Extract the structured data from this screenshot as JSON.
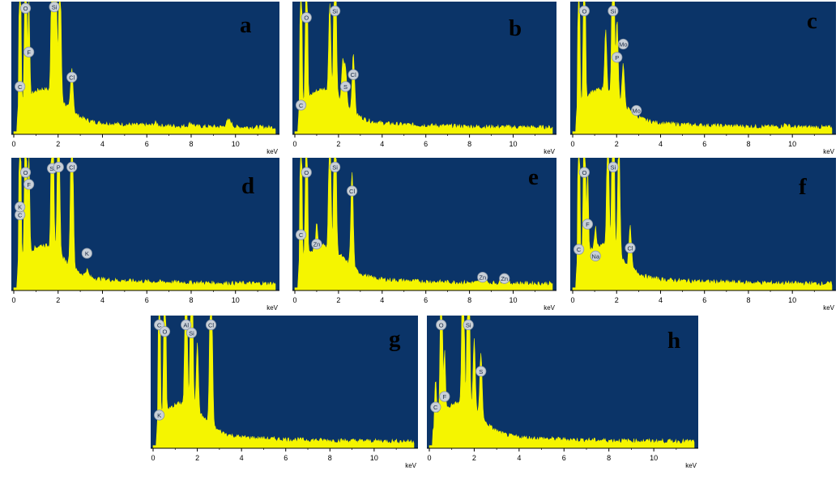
{
  "colors": {
    "background": "#0b3468",
    "spectrum": "#f5f500",
    "marker_fill": "#c9d0d8",
    "marker_text": "#1a2a44",
    "axis_text": "#000000"
  },
  "axis": {
    "unit": "keV",
    "ticks": [
      0,
      2,
      4,
      6,
      8,
      10
    ],
    "xlim": [
      0,
      11.8
    ]
  },
  "chart_data": [
    {
      "type": "area",
      "label": "a",
      "xlabel": "keV",
      "peaks": [
        {
          "x": 0.28,
          "h": 1.9
        },
        {
          "x": 0.53,
          "h": 2.6
        },
        {
          "x": 0.68,
          "h": 0.75
        },
        {
          "x": 1.74,
          "h": 1.6
        },
        {
          "x": 1.88,
          "h": 1.8
        },
        {
          "x": 2.08,
          "h": 1.1
        },
        {
          "x": 2.62,
          "h": 0.32
        },
        {
          "x": 9.7,
          "h": 0.05
        },
        {
          "x": 8.0,
          "h": 0.025
        },
        {
          "x": 6.4,
          "h": 0.02
        }
      ],
      "markers": [
        {
          "label": "C",
          "x": 0.28,
          "h": 0.36
        },
        {
          "label": "O",
          "x": 0.53,
          "h": 0.95
        },
        {
          "label": "F",
          "x": 0.68,
          "h": 0.62
        },
        {
          "label": "Si",
          "x": 1.83,
          "h": 0.96
        },
        {
          "label": "Cl",
          "x": 2.62,
          "h": 0.43
        }
      ]
    },
    {
      "type": "area",
      "label": "b",
      "xlabel": "keV",
      "peaks": [
        {
          "x": 0.28,
          "h": 1.8
        },
        {
          "x": 0.53,
          "h": 2.4
        },
        {
          "x": 1.6,
          "h": 0.68
        },
        {
          "x": 1.84,
          "h": 1.7
        },
        {
          "x": 2.2,
          "h": 0.3
        },
        {
          "x": 2.32,
          "h": 0.28
        },
        {
          "x": 2.68,
          "h": 0.45
        }
      ],
      "markers": [
        {
          "label": "C",
          "x": 0.28,
          "h": 0.22
        },
        {
          "label": "O",
          "x": 0.53,
          "h": 0.88
        },
        {
          "label": "Si",
          "x": 1.84,
          "h": 0.93
        },
        {
          "label": "S",
          "x": 2.32,
          "h": 0.36
        },
        {
          "label": "Cl",
          "x": 2.68,
          "h": 0.45
        }
      ]
    },
    {
      "type": "area",
      "label": "c",
      "xlabel": "keV",
      "peaks": [
        {
          "x": 0.28,
          "h": 1.7
        },
        {
          "x": 0.53,
          "h": 2.4
        },
        {
          "x": 1.5,
          "h": 0.46
        },
        {
          "x": 1.84,
          "h": 1.8
        },
        {
          "x": 2.02,
          "h": 0.58
        },
        {
          "x": 2.3,
          "h": 0.3
        },
        {
          "x": 9.7,
          "h": 0.02
        }
      ],
      "markers": [
        {
          "label": "O",
          "x": 0.53,
          "h": 0.93
        },
        {
          "label": "Si",
          "x": 1.84,
          "h": 0.93
        },
        {
          "label": "Mo",
          "x": 2.3,
          "h": 0.68
        },
        {
          "label": "P",
          "x": 2.02,
          "h": 0.58
        },
        {
          "label": "Mo",
          "x": 2.9,
          "h": 0.18
        }
      ]
    },
    {
      "type": "area",
      "label": "d",
      "xlabel": "keV",
      "peaks": [
        {
          "x": 0.28,
          "h": 1.9
        },
        {
          "x": 0.53,
          "h": 2.5
        },
        {
          "x": 0.68,
          "h": 0.78
        },
        {
          "x": 1.74,
          "h": 1.9
        },
        {
          "x": 2.02,
          "h": 1.3
        },
        {
          "x": 2.62,
          "h": 1.4
        },
        {
          "x": 3.3,
          "h": 0.05
        }
      ],
      "markers": [
        {
          "label": "C",
          "x": 0.28,
          "h": 0.57
        },
        {
          "label": "K",
          "x": 0.28,
          "h": 0.63
        },
        {
          "label": "O",
          "x": 0.53,
          "h": 0.89
        },
        {
          "label": "F",
          "x": 0.68,
          "h": 0.8
        },
        {
          "label": "Si",
          "x": 1.74,
          "h": 0.92
        },
        {
          "label": "P",
          "x": 2.02,
          "h": 0.93
        },
        {
          "label": "Cl",
          "x": 2.62,
          "h": 0.93
        },
        {
          "label": "K",
          "x": 3.3,
          "h": 0.28
        }
      ]
    },
    {
      "type": "area",
      "label": "e",
      "xlabel": "keV",
      "peaks": [
        {
          "x": 0.28,
          "h": 1.8
        },
        {
          "x": 0.53,
          "h": 2.4
        },
        {
          "x": 1.0,
          "h": 0.2
        },
        {
          "x": 1.6,
          "h": 1.2
        },
        {
          "x": 1.84,
          "h": 1.6
        },
        {
          "x": 2.62,
          "h": 0.72
        },
        {
          "x": 8.6,
          "h": 0.05
        },
        {
          "x": 9.6,
          "h": 0.03
        }
      ],
      "markers": [
        {
          "label": "C",
          "x": 0.28,
          "h": 0.42
        },
        {
          "label": "O",
          "x": 0.53,
          "h": 0.89
        },
        {
          "label": "Zn",
          "x": 1.0,
          "h": 0.35
        },
        {
          "label": "Si",
          "x": 1.84,
          "h": 0.93
        },
        {
          "label": "Cl",
          "x": 2.62,
          "h": 0.75
        },
        {
          "label": "Zn",
          "x": 8.6,
          "h": 0.1
        },
        {
          "label": "Zn",
          "x": 9.6,
          "h": 0.09
        }
      ]
    },
    {
      "type": "area",
      "label": "f",
      "xlabel": "keV",
      "peaks": [
        {
          "x": 0.28,
          "h": 1.8
        },
        {
          "x": 0.53,
          "h": 2.4
        },
        {
          "x": 0.68,
          "h": 0.62
        },
        {
          "x": 1.04,
          "h": 0.15
        },
        {
          "x": 1.6,
          "h": 1.2
        },
        {
          "x": 1.84,
          "h": 1.7
        },
        {
          "x": 2.1,
          "h": 0.9
        },
        {
          "x": 2.62,
          "h": 0.3
        }
      ],
      "markers": [
        {
          "label": "C",
          "x": 0.28,
          "h": 0.31
        },
        {
          "label": "O",
          "x": 0.53,
          "h": 0.89
        },
        {
          "label": "F",
          "x": 0.68,
          "h": 0.5
        },
        {
          "label": "Na",
          "x": 1.04,
          "h": 0.26
        },
        {
          "label": "Si",
          "x": 1.84,
          "h": 0.93
        },
        {
          "label": "Cl",
          "x": 2.62,
          "h": 0.32
        }
      ]
    },
    {
      "type": "area",
      "label": "g",
      "xlabel": "keV",
      "peaks": [
        {
          "x": 0.28,
          "h": 1.9
        },
        {
          "x": 0.53,
          "h": 2.5
        },
        {
          "x": 1.49,
          "h": 1.8
        },
        {
          "x": 1.74,
          "h": 1.8
        },
        {
          "x": 2.0,
          "h": 0.5
        },
        {
          "x": 2.62,
          "h": 1.5
        }
      ],
      "markers": [
        {
          "label": "C",
          "x": 0.28,
          "h": 0.93
        },
        {
          "label": "K",
          "x": 0.28,
          "h": 0.25
        },
        {
          "label": "O",
          "x": 0.53,
          "h": 0.88
        },
        {
          "label": "Al",
          "x": 1.49,
          "h": 0.93
        },
        {
          "label": "Si",
          "x": 1.74,
          "h": 0.87
        },
        {
          "label": "Cl",
          "x": 2.62,
          "h": 0.93
        }
      ]
    },
    {
      "type": "area",
      "label": "h",
      "xlabel": "keV",
      "peaks": [
        {
          "x": 0.28,
          "h": 0.3
        },
        {
          "x": 0.53,
          "h": 2.3
        },
        {
          "x": 0.68,
          "h": 0.45
        },
        {
          "x": 1.5,
          "h": 1.8
        },
        {
          "x": 1.74,
          "h": 1.8
        },
        {
          "x": 2.0,
          "h": 0.55
        },
        {
          "x": 2.3,
          "h": 0.5
        }
      ],
      "markers": [
        {
          "label": "C",
          "x": 0.28,
          "h": 0.31
        },
        {
          "label": "O",
          "x": 0.53,
          "h": 0.93
        },
        {
          "label": "F",
          "x": 0.68,
          "h": 0.39
        },
        {
          "label": "Si",
          "x": 1.74,
          "h": 0.93
        },
        {
          "label": "S",
          "x": 2.3,
          "h": 0.58
        }
      ]
    }
  ]
}
